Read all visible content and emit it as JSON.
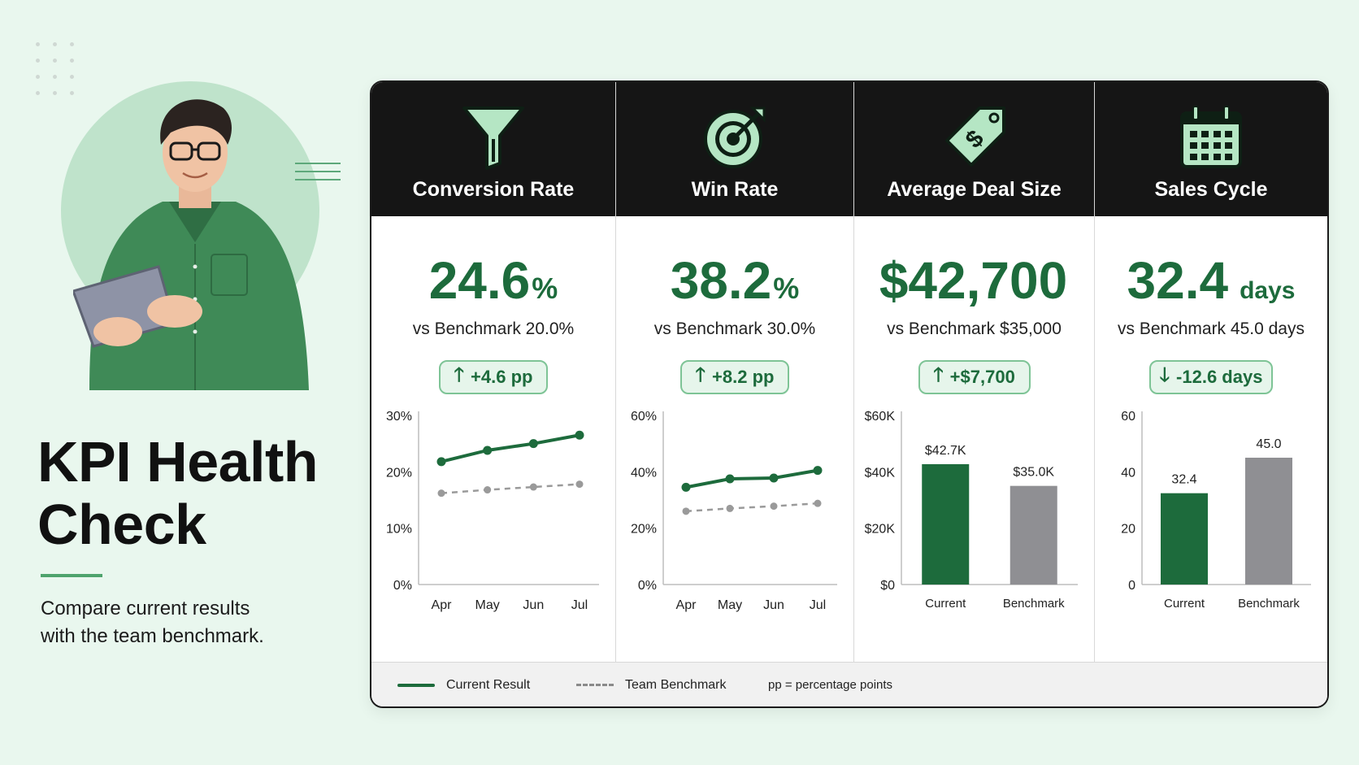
{
  "page": {
    "title_line1": "KPI Health",
    "title_line2": "Check",
    "subtitle_line1": "Compare current results",
    "subtitle_line2": "with the team benchmark."
  },
  "colors": {
    "current": "#1d6b3c",
    "benchmark": "#8f8f93",
    "badge_bg": "#e6f5eb",
    "header_bg": "#151515",
    "accent": "#4ea36c"
  },
  "kpis": [
    {
      "icon": "funnel-icon",
      "title": "Conversion Rate",
      "value": "24.6",
      "unit": "%",
      "benchmark_text": "vs Benchmark 20.0%",
      "delta": "+4.6 pp",
      "direction": "up"
    },
    {
      "icon": "target-icon",
      "title": "Win Rate",
      "value": "38.2",
      "unit": "%",
      "benchmark_text": "vs Benchmark 30.0%",
      "delta": "+8.2 pp",
      "direction": "up"
    },
    {
      "icon": "price-tag-icon",
      "title": "Average Deal Size",
      "value": "$42,700",
      "unit": "",
      "benchmark_text": "vs Benchmark $35,000",
      "delta": "+$7,700",
      "direction": "up"
    },
    {
      "icon": "calendar-icon",
      "title": "Sales Cycle",
      "value": "32.4",
      "unit": "days",
      "benchmark_text": "vs Benchmark 45.0 days",
      "delta": "-12.6 days",
      "direction": "down"
    }
  ],
  "chart_data": [
    {
      "type": "line",
      "categories": [
        "Apr",
        "May",
        "Jun",
        "Jul"
      ],
      "ylim": [
        0,
        30
      ],
      "yticks": [
        "0%",
        "10%",
        "20%",
        "30%"
      ],
      "ytick_values": [
        0,
        10,
        20,
        30
      ],
      "series": [
        {
          "name": "Current Result",
          "values": [
            21.8,
            23.8,
            25.0,
            26.5
          ],
          "style": "solid"
        },
        {
          "name": "Team Benchmark",
          "values": [
            16.2,
            16.8,
            17.3,
            17.8
          ],
          "style": "dashed"
        }
      ]
    },
    {
      "type": "line",
      "categories": [
        "Apr",
        "May",
        "Jun",
        "Jul"
      ],
      "ylim": [
        0,
        60
      ],
      "yticks": [
        "0%",
        "20%",
        "40%",
        "60%"
      ],
      "ytick_values": [
        0,
        20,
        40,
        60
      ],
      "series": [
        {
          "name": "Current Result",
          "values": [
            34.5,
            37.5,
            37.8,
            40.5
          ],
          "style": "solid"
        },
        {
          "name": "Team Benchmark",
          "values": [
            26.0,
            27.0,
            27.8,
            28.8
          ],
          "style": "dashed"
        }
      ]
    },
    {
      "type": "bar",
      "categories": [
        "Current",
        "Benchmark"
      ],
      "ylim": [
        0,
        60000
      ],
      "yticks": [
        "$0",
        "$20K",
        "$40K",
        "$60K"
      ],
      "ytick_values": [
        0,
        20000,
        40000,
        60000
      ],
      "values": [
        42700,
        35000
      ],
      "data_labels": [
        "$42.7K",
        "$35.0K"
      ]
    },
    {
      "type": "bar",
      "categories": [
        "Current",
        "Benchmark"
      ],
      "ylim": [
        0,
        60
      ],
      "yticks": [
        "0",
        "20",
        "40",
        "60"
      ],
      "ytick_values": [
        0,
        20,
        40,
        60
      ],
      "values": [
        32.4,
        45.0
      ],
      "data_labels": [
        "32.4",
        "45.0"
      ]
    }
  ],
  "legend": {
    "current_label": "Current Result",
    "benchmark_label": "Team Benchmark",
    "note": "pp = percentage points"
  }
}
